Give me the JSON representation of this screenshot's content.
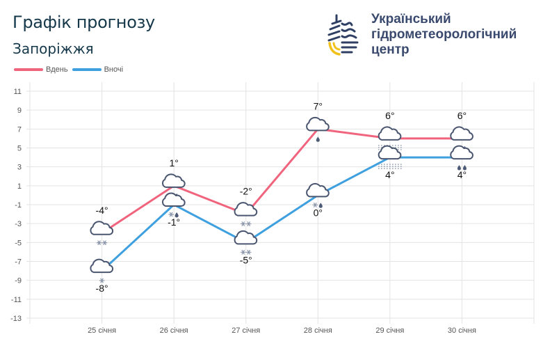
{
  "header": {
    "title": "Графік прогнозу",
    "city": "Запоріжжя"
  },
  "organization": {
    "line1": "Український",
    "line2": "гідрометеорологічний",
    "line3": "центр"
  },
  "chart_data": {
    "type": "line",
    "categories": [
      "25 січня",
      "26 січня",
      "27 січня",
      "28 січня",
      "29 січня",
      "30 січня"
    ],
    "series": [
      {
        "name": "Вдень",
        "color": "#f0647e",
        "values": [
          -4,
          1,
          -2,
          7,
          6,
          6
        ],
        "labels": [
          "-4°",
          "1°",
          "-2°",
          "7°",
          "6°",
          "6°"
        ],
        "icons": [
          "cloud-snow-2",
          "cloud-snow-rain",
          "cloud-snow-2",
          "cloud-rain-1",
          "cloud-fog",
          "cloud-rain-2"
        ]
      },
      {
        "name": "Вночі",
        "color": "#3fa0e0",
        "values": [
          -8,
          -1,
          -5,
          0,
          4,
          4
        ],
        "labels": [
          "-8°",
          "-1°",
          "-5°",
          "0°",
          "4°",
          "4°"
        ],
        "icons": [
          "cloud-snow-1",
          "cloud-snow-rain",
          "cloud-snow-2",
          "cloud-snow-rain",
          "cloud-fog",
          "cloud-rain-2"
        ]
      }
    ],
    "yticks": [
      "11",
      "9",
      "7",
      "5",
      "3",
      "1",
      "-1",
      "-3",
      "-5",
      "-7",
      "-9",
      "-11",
      "-13"
    ],
    "ylim": [
      -13,
      11
    ],
    "grid": true,
    "legend": "top-left"
  }
}
